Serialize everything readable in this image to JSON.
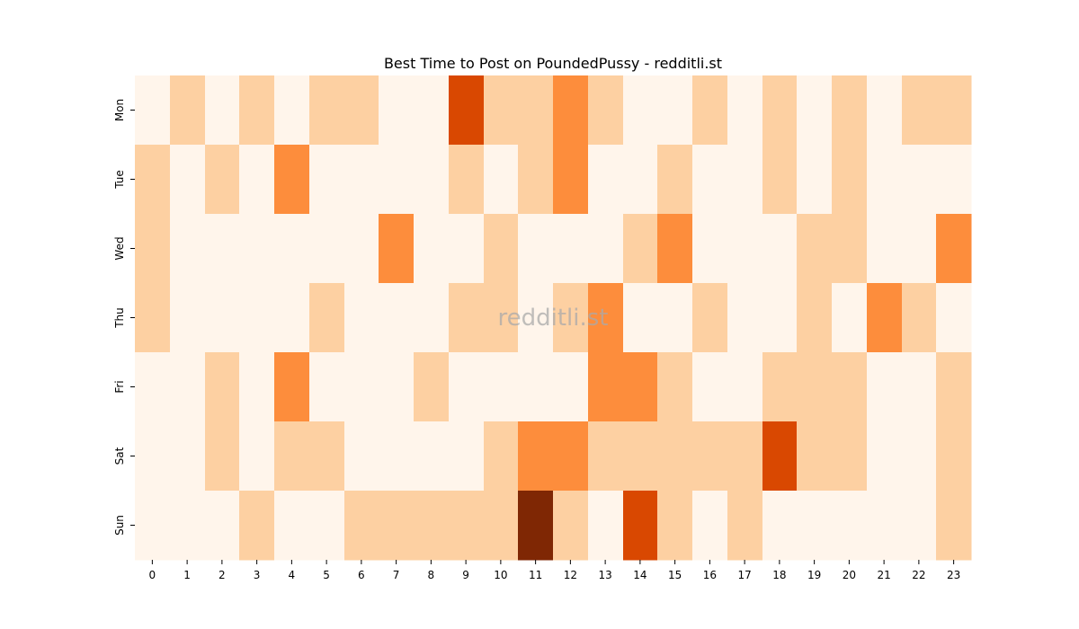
{
  "chart_data": {
    "type": "heatmap",
    "title": "Best Time to Post on PoundedPussy - redditli.st",
    "watermark": "redditli.st",
    "xlabel": "",
    "ylabel": "",
    "x_categories": [
      "0",
      "1",
      "2",
      "3",
      "4",
      "5",
      "6",
      "7",
      "8",
      "9",
      "10",
      "11",
      "12",
      "13",
      "14",
      "15",
      "16",
      "17",
      "18",
      "19",
      "20",
      "21",
      "22",
      "23"
    ],
    "y_categories": [
      "Mon",
      "Tue",
      "Wed",
      "Thu",
      "Fri",
      "Sat",
      "Sun"
    ],
    "values": [
      [
        0,
        1,
        0,
        1,
        0,
        1,
        1,
        0,
        0,
        3,
        1,
        1,
        2,
        1,
        0,
        0,
        1,
        0,
        1,
        0,
        1,
        0,
        1,
        1
      ],
      [
        1,
        0,
        1,
        0,
        2,
        0,
        0,
        0,
        0,
        1,
        0,
        1,
        2,
        0,
        0,
        1,
        0,
        0,
        1,
        0,
        1,
        0,
        0,
        0
      ],
      [
        1,
        0,
        0,
        0,
        0,
        0,
        0,
        2,
        0,
        0,
        1,
        0,
        0,
        0,
        1,
        2,
        0,
        0,
        0,
        1,
        1,
        0,
        0,
        2
      ],
      [
        1,
        0,
        0,
        0,
        0,
        1,
        0,
        0,
        0,
        1,
        1,
        0,
        1,
        2,
        0,
        0,
        1,
        0,
        0,
        1,
        0,
        2,
        1,
        0
      ],
      [
        0,
        0,
        1,
        0,
        2,
        0,
        0,
        0,
        1,
        0,
        0,
        0,
        0,
        2,
        2,
        1,
        0,
        0,
        1,
        1,
        1,
        0,
        0,
        1
      ],
      [
        0,
        0,
        1,
        0,
        1,
        1,
        0,
        0,
        0,
        0,
        1,
        2,
        2,
        1,
        1,
        1,
        1,
        1,
        3,
        1,
        1,
        0,
        0,
        1
      ],
      [
        0,
        0,
        0,
        1,
        0,
        0,
        1,
        1,
        1,
        1,
        1,
        4,
        1,
        0,
        3,
        1,
        0,
        1,
        0,
        0,
        0,
        0,
        0,
        1
      ]
    ],
    "color_scale": [
      "#fff5eb",
      "#fdd0a2",
      "#fd8d3c",
      "#d94801",
      "#7f2704"
    ],
    "legend": "none",
    "grid": false
  }
}
